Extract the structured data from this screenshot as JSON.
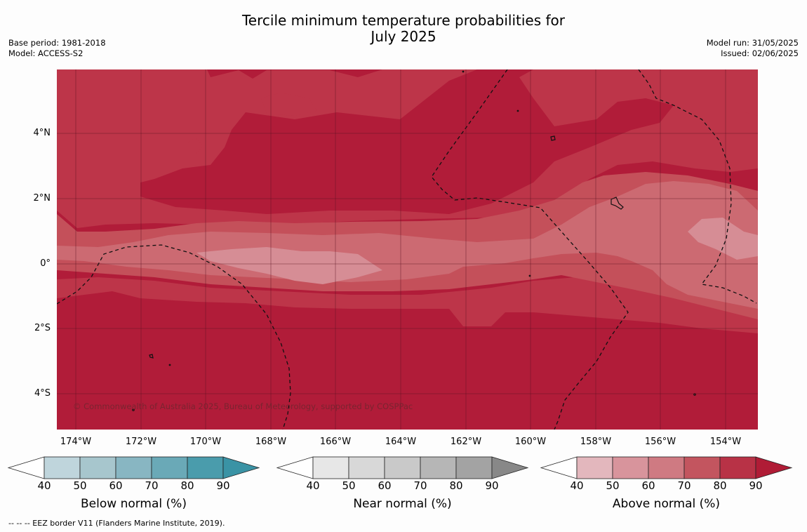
{
  "title_line1": "Tercile minimum temperature probabilities for",
  "title_line2": "July 2025",
  "meta_left": [
    "Base period: 1981-2018",
    "Model: ACCESS-S2"
  ],
  "meta_right": [
    "Model run: 31/05/2025",
    "Issued: 02/06/2025"
  ],
  "y_ticks": [
    "4°N",
    "2°N",
    "0°",
    "2°S",
    "4°S"
  ],
  "x_ticks": [
    "174°W",
    "172°W",
    "170°W",
    "168°W",
    "166°W",
    "164°W",
    "162°W",
    "160°W",
    "158°W",
    "156°W",
    "154°W"
  ],
  "copyright": "© Commonwealth of Australia 2025, Bureau of Meteorology, supported by COSPPac",
  "colorbars": [
    {
      "label": "Below normal (%)",
      "ticks": [
        "40",
        "50",
        "60",
        "70",
        "80",
        "90"
      ],
      "colors": [
        "#ffffff",
        "#bfd5dc",
        "#a7c6cd",
        "#88b6c2",
        "#6aa9b7",
        "#4a9cac",
        "#3a93a5"
      ]
    },
    {
      "label": "Near normal (%)",
      "ticks": [
        "40",
        "50",
        "60",
        "70",
        "80",
        "90"
      ],
      "colors": [
        "#ffffff",
        "#e7e7e7",
        "#d8d8d8",
        "#c9c9c9",
        "#b6b6b6",
        "#a3a3a3",
        "#888888"
      ]
    },
    {
      "label": "Above normal (%)",
      "ticks": [
        "40",
        "50",
        "60",
        "70",
        "80",
        "90"
      ],
      "colors": [
        "#ffffff",
        "#e3b7bd",
        "#d8949c",
        "#cf7a82",
        "#c3555f",
        "#b83246",
        "#b01c36"
      ]
    }
  ],
  "footer": "--  --  -- EEZ border V11 (Flanders Marine Institute, 2019).",
  "map_colors": {
    "level90": "#b11c39",
    "level80": "#bd3549",
    "level70": "#c4505a",
    "level60": "#cc6a72",
    "level50": "#d68d95"
  }
}
